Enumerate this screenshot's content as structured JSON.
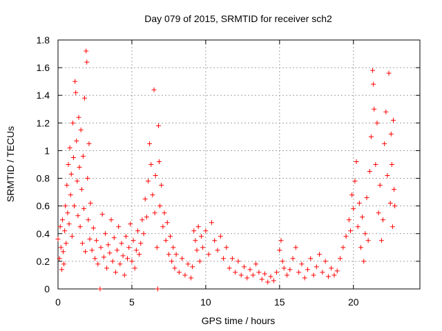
{
  "chart_data": {
    "type": "scatter",
    "title": "Day 079 of 2015, SRMTID for receiver sch2",
    "xlabel": "GPS time / hours",
    "ylabel": "SRMTID / TECUs",
    "xlim": [
      0,
      24.5
    ],
    "ylim": [
      0,
      1.8
    ],
    "xticks": [
      0,
      5,
      10,
      15,
      20
    ],
    "xtick_labels": [
      "0",
      "5",
      "10",
      "15",
      "20"
    ],
    "yticks": [
      0,
      0.2,
      0.4,
      0.6,
      0.8,
      1,
      1.2,
      1.4,
      1.6,
      1.8
    ],
    "ytick_labels": [
      "0",
      "0.2",
      "0.4",
      "0.6",
      "0.8",
      "1",
      "1.2",
      "1.4",
      "1.6",
      "1.8"
    ],
    "grid": true,
    "marker": "+",
    "color": "#ff0000",
    "series": [
      {
        "name": "sch2",
        "points": [
          [
            0.0,
            0.36
          ],
          [
            0.1,
            0.22
          ],
          [
            0.15,
            0.45
          ],
          [
            0.2,
            0.3
          ],
          [
            0.25,
            0.14
          ],
          [
            0.3,
            0.5
          ],
          [
            0.35,
            0.27
          ],
          [
            0.4,
            0.18
          ],
          [
            0.45,
            0.42
          ],
          [
            0.5,
            0.6
          ],
          [
            0.55,
            0.33
          ],
          [
            0.6,
            0.75
          ],
          [
            0.65,
            0.55
          ],
          [
            0.7,
            0.9
          ],
          [
            0.75,
            0.47
          ],
          [
            0.8,
            1.02
          ],
          [
            0.85,
            0.68
          ],
          [
            0.9,
            0.83
          ],
          [
            0.95,
            0.38
          ],
          [
            1.0,
            1.2
          ],
          [
            1.05,
            0.95
          ],
          [
            1.1,
            0.6
          ],
          [
            1.15,
            1.5
          ],
          [
            1.2,
            1.42
          ],
          [
            1.25,
            1.07
          ],
          [
            1.3,
            0.78
          ],
          [
            1.35,
            0.53
          ],
          [
            1.4,
            1.24
          ],
          [
            1.45,
            0.88
          ],
          [
            1.5,
            0.45
          ],
          [
            1.55,
            1.15
          ],
          [
            1.6,
            0.72
          ],
          [
            1.65,
            0.33
          ],
          [
            1.7,
            0.96
          ],
          [
            1.75,
            0.58
          ],
          [
            1.8,
            1.38
          ],
          [
            1.85,
            0.27
          ],
          [
            1.9,
            1.72
          ],
          [
            1.95,
            1.64
          ],
          [
            2.0,
            0.8
          ],
          [
            2.05,
            0.5
          ],
          [
            2.1,
            1.05
          ],
          [
            2.15,
            0.36
          ],
          [
            2.2,
            0.62
          ],
          [
            2.3,
            0.28
          ],
          [
            2.4,
            0.44
          ],
          [
            2.5,
            0.22
          ],
          [
            2.6,
            0.35
          ],
          [
            2.7,
            0.18
          ],
          [
            2.85,
            0.0
          ],
          [
            2.9,
            0.3
          ],
          [
            3.0,
            0.54
          ],
          [
            3.1,
            0.23
          ],
          [
            3.2,
            0.4
          ],
          [
            3.3,
            0.15
          ],
          [
            3.4,
            0.32
          ],
          [
            3.5,
            0.26
          ],
          [
            3.6,
            0.5
          ],
          [
            3.7,
            0.2
          ],
          [
            3.8,
            0.37
          ],
          [
            3.9,
            0.12
          ],
          [
            4.0,
            0.28
          ],
          [
            4.1,
            0.45
          ],
          [
            4.2,
            0.18
          ],
          [
            4.3,
            0.33
          ],
          [
            4.4,
            0.24
          ],
          [
            4.5,
            0.1
          ],
          [
            4.6,
            0.38
          ],
          [
            4.7,
            0.22
          ],
          [
            4.8,
            0.3
          ],
          [
            4.9,
            0.47
          ],
          [
            5.0,
            0.2
          ],
          [
            5.1,
            0.35
          ],
          [
            5.2,
            0.15
          ],
          [
            5.3,
            0.28
          ],
          [
            5.4,
            0.42
          ],
          [
            5.5,
            0.25
          ],
          [
            5.6,
            0.33
          ],
          [
            5.7,
            0.5
          ],
          [
            5.8,
            0.4
          ],
          [
            5.9,
            0.65
          ],
          [
            6.0,
            0.52
          ],
          [
            6.1,
            0.78
          ],
          [
            6.2,
            1.05
          ],
          [
            6.3,
            0.9
          ],
          [
            6.4,
            0.68
          ],
          [
            6.5,
            1.44
          ],
          [
            6.55,
            0.55
          ],
          [
            6.6,
            0.82
          ],
          [
            6.7,
            0.3
          ],
          [
            6.75,
            0.0
          ],
          [
            6.8,
            1.18
          ],
          [
            6.85,
            0.92
          ],
          [
            6.9,
            0.6
          ],
          [
            7.0,
            0.75
          ],
          [
            7.1,
            0.45
          ],
          [
            7.2,
            0.55
          ],
          [
            7.3,
            0.35
          ],
          [
            7.4,
            0.48
          ],
          [
            7.5,
            0.25
          ],
          [
            7.6,
            0.38
          ],
          [
            7.7,
            0.2
          ],
          [
            7.8,
            0.3
          ],
          [
            7.9,
            0.15
          ],
          [
            8.0,
            0.25
          ],
          [
            8.2,
            0.12
          ],
          [
            8.4,
            0.22
          ],
          [
            8.6,
            0.1
          ],
          [
            8.8,
            0.18
          ],
          [
            9.0,
            0.08
          ],
          [
            9.1,
            0.16
          ],
          [
            9.2,
            0.42
          ],
          [
            9.3,
            0.35
          ],
          [
            9.4,
            0.28
          ],
          [
            9.5,
            0.45
          ],
          [
            9.6,
            0.2
          ],
          [
            9.7,
            0.38
          ],
          [
            9.8,
            0.3
          ],
          [
            10.0,
            0.42
          ],
          [
            10.2,
            0.25
          ],
          [
            10.4,
            0.48
          ],
          [
            10.6,
            0.35
          ],
          [
            10.8,
            0.28
          ],
          [
            11.0,
            0.38
          ],
          [
            11.2,
            0.22
          ],
          [
            11.4,
            0.3
          ],
          [
            11.6,
            0.15
          ],
          [
            11.8,
            0.22
          ],
          [
            12.0,
            0.12
          ],
          [
            12.2,
            0.2
          ],
          [
            12.4,
            0.1
          ],
          [
            12.6,
            0.16
          ],
          [
            12.8,
            0.08
          ],
          [
            13.0,
            0.14
          ],
          [
            13.2,
            0.1
          ],
          [
            13.4,
            0.18
          ],
          [
            13.6,
            0.12
          ],
          [
            13.8,
            0.07
          ],
          [
            14.0,
            0.11
          ],
          [
            14.2,
            0.05
          ],
          [
            14.4,
            0.09
          ],
          [
            14.6,
            0.06
          ],
          [
            14.8,
            0.12
          ],
          [
            15.0,
            0.28
          ],
          [
            15.1,
            0.35
          ],
          [
            15.2,
            0.2
          ],
          [
            15.3,
            0.15
          ],
          [
            15.5,
            0.1
          ],
          [
            15.7,
            0.14
          ],
          [
            15.9,
            0.22
          ],
          [
            16.1,
            0.3
          ],
          [
            16.3,
            0.12
          ],
          [
            16.5,
            0.18
          ],
          [
            16.7,
            0.08
          ],
          [
            16.9,
            0.14
          ],
          [
            17.1,
            0.22
          ],
          [
            17.3,
            0.1
          ],
          [
            17.5,
            0.16
          ],
          [
            17.7,
            0.25
          ],
          [
            17.9,
            0.12
          ],
          [
            18.1,
            0.2
          ],
          [
            18.3,
            0.09
          ],
          [
            18.5,
            0.15
          ],
          [
            18.7,
            0.1
          ],
          [
            18.9,
            0.13
          ],
          [
            19.1,
            0.22
          ],
          [
            19.3,
            0.3
          ],
          [
            19.5,
            0.38
          ],
          [
            19.7,
            0.5
          ],
          [
            19.8,
            0.42
          ],
          [
            19.9,
            0.68
          ],
          [
            20.0,
            0.58
          ],
          [
            20.1,
            0.78
          ],
          [
            20.2,
            0.92
          ],
          [
            20.3,
            0.45
          ],
          [
            20.4,
            0.62
          ],
          [
            20.5,
            0.3
          ],
          [
            20.6,
            0.52
          ],
          [
            20.7,
            0.2
          ],
          [
            20.8,
            0.4
          ],
          [
            20.9,
            0.66
          ],
          [
            21.0,
            0.35
          ],
          [
            21.1,
            0.85
          ],
          [
            21.2,
            1.1
          ],
          [
            21.3,
            1.58
          ],
          [
            21.35,
            1.48
          ],
          [
            21.4,
            1.3
          ],
          [
            21.5,
            0.9
          ],
          [
            21.6,
            1.2
          ],
          [
            21.7,
            0.55
          ],
          [
            21.8,
            0.75
          ],
          [
            21.9,
            0.35
          ],
          [
            22.0,
            0.5
          ],
          [
            22.1,
            1.05
          ],
          [
            22.2,
            1.28
          ],
          [
            22.3,
            0.82
          ],
          [
            22.4,
            1.56
          ],
          [
            22.5,
            0.62
          ],
          [
            22.55,
            1.12
          ],
          [
            22.6,
            0.9
          ],
          [
            22.65,
            0.45
          ],
          [
            22.7,
            1.22
          ],
          [
            22.75,
            0.72
          ],
          [
            22.8,
            0.6
          ]
        ]
      }
    ]
  }
}
